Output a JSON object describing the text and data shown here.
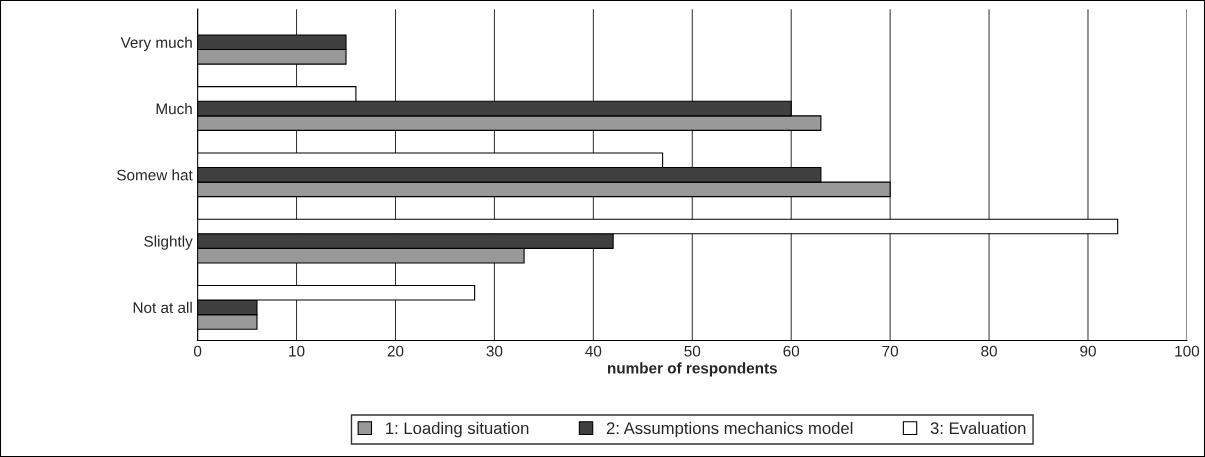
{
  "chart_data": {
    "type": "bar",
    "orientation": "horizontal",
    "categories": [
      "Very much",
      "Much",
      "Somew hat",
      "Slightly",
      "Not at all"
    ],
    "series": [
      {
        "name": "1: Loading situation",
        "color": "#999999",
        "values": [
          15,
          63,
          70,
          33,
          6
        ]
      },
      {
        "name": "2: Assumptions mechanics model",
        "color": "#404040",
        "values": [
          15,
          60,
          63,
          42,
          6
        ]
      },
      {
        "name": "3: Evaluation",
        "color": "#ffffff",
        "values": [
          null,
          16,
          47,
          93,
          28
        ]
      }
    ],
    "xlabel": "number of respondents",
    "xlim": [
      0,
      100
    ],
    "xticks": [
      0,
      10,
      20,
      30,
      40,
      50,
      60,
      70,
      80,
      90,
      100
    ],
    "grid": "x",
    "legend": "bottom"
  }
}
